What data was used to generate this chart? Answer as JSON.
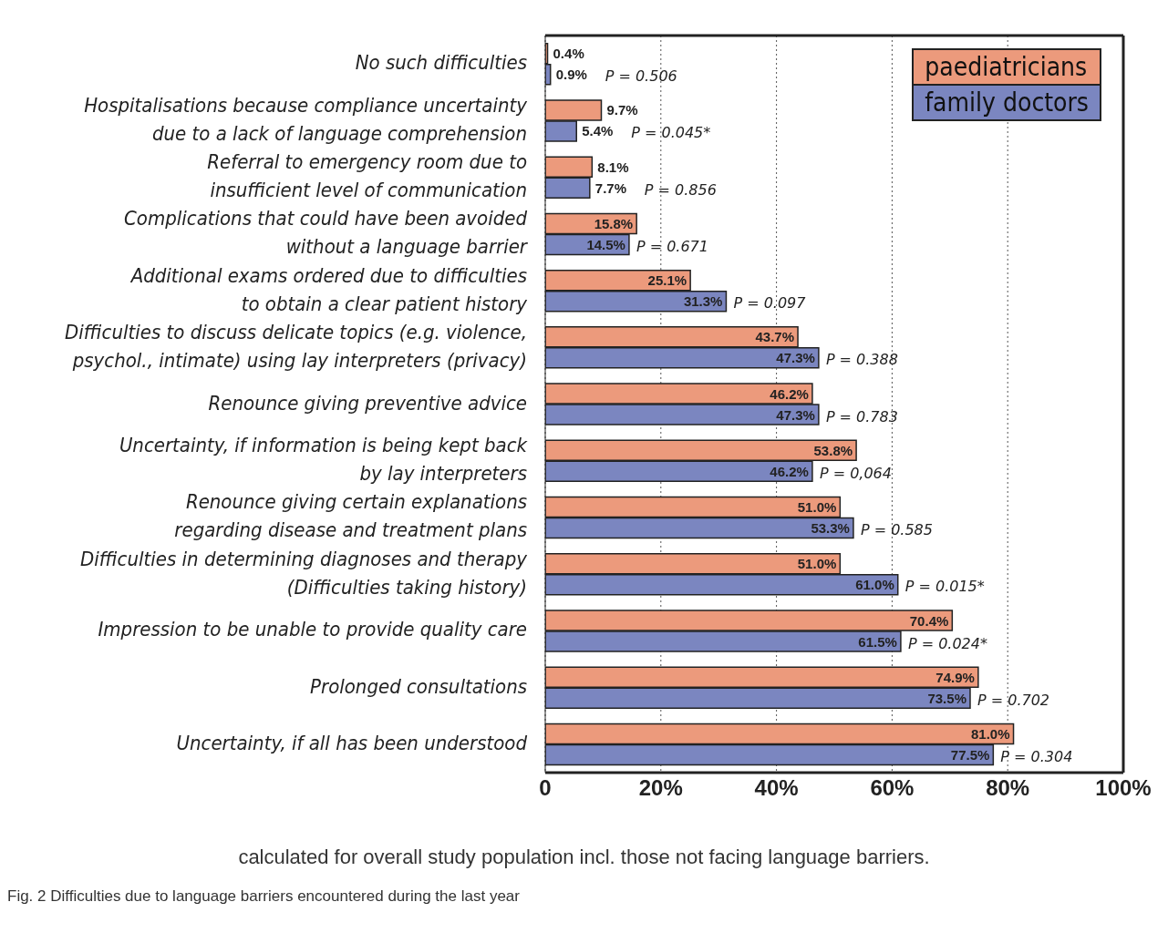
{
  "chart_data": {
    "type": "bar",
    "orientation": "horizontal",
    "categories": [
      "No such difficulties",
      "Hospitalisations because compliance uncertainty\ndue to a lack of language comprehension",
      "Referral to emergency room due to\ninsufficient level of communication",
      "Complications that could have been avoided\nwithout a language barrier",
      "Additional exams ordered due to difficulties\nto obtain a clear patient history",
      "Difficulties to discuss delicate topics (e.g. violence,\npsychol., intimate) using lay interpreters (privacy)",
      "Renounce giving preventive advice",
      "Uncertainty, if information is being kept back\nby lay interpreters",
      "Renounce giving certain explanations\nregarding disease and treatment plans",
      "Difficulties in determining diagnoses and therapy\n(Difficulties taking history)",
      "Impression to be unable to provide quality care",
      "Prolonged consultations",
      "Uncertainty, if all has been understood"
    ],
    "series": [
      {
        "name": "paediatricians",
        "color": "#ec9a7c",
        "values": [
          0.4,
          9.7,
          8.1,
          15.8,
          25.1,
          43.7,
          46.2,
          53.8,
          51.0,
          51.0,
          70.4,
          74.9,
          81.0
        ],
        "value_labels": [
          "0.4%",
          "9.7%",
          "8.1%",
          "15.8%",
          "25.1%",
          "43.7%",
          "46.2%",
          "53.8%",
          "51.0%",
          "51.0%",
          "70.4%",
          "74.9%",
          "81.0%"
        ]
      },
      {
        "name": "family doctors",
        "color": "#7b86c0",
        "values": [
          0.9,
          5.4,
          7.7,
          14.5,
          31.3,
          47.3,
          47.3,
          46.2,
          53.3,
          61.0,
          61.5,
          73.5,
          77.5
        ],
        "value_labels": [
          "0.9%",
          "5.4%",
          "7.7%",
          "14.5%",
          "31.3%",
          "47.3%",
          "47.3%",
          "46.2%",
          "53.3%",
          "61.0%",
          "61.5%",
          "73.5%",
          "77.5%"
        ]
      }
    ],
    "xlim": [
      0,
      100
    ],
    "xticks": [
      0,
      {
        "value": 20,
        "label": "20%"
      },
      {
        "value": 40,
        "label": "40%"
      },
      {
        "value": 60,
        "label": "60%"
      },
      {
        "value": 80,
        "label": "80%"
      },
      {
        "value": 100,
        "label": "100%"
      }
    ],
    "grid": "x",
    "legend": "top right",
    "annotations": [
      "P = 0.506",
      "P = 0.045*",
      "P = 0.856",
      "P = 0.671",
      "P = 0.097",
      "P = 0.388",
      "P = 0.783",
      "P = 0,064",
      "P = 0.585",
      "P = 0.015*",
      "P = 0.024*",
      "P = 0.702",
      "P = 0.304",
      "calculated for overall study population incl. those not facing language barriers.",
      "Fig. 2 Difficulties due to language barriers encountered during the last year"
    ]
  }
}
